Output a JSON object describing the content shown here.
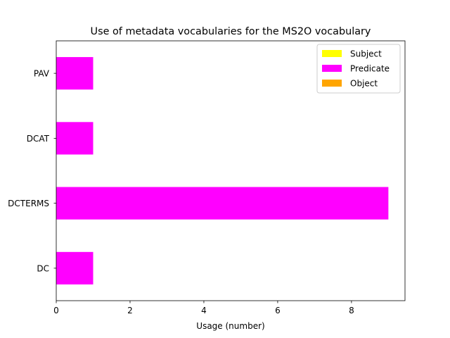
{
  "chart_data": {
    "type": "bar",
    "orientation": "horizontal",
    "stacked": true,
    "title": "Use of metadata vocabularies for the MS2O vocabulary",
    "xlabel": "Usage (number)",
    "ylabel": "",
    "categories": [
      "DC",
      "DCTERMS",
      "DCAT",
      "PAV"
    ],
    "series": [
      {
        "name": "Subject",
        "color": "#ffff00",
        "values": [
          0,
          0,
          0,
          0
        ]
      },
      {
        "name": "Predicate",
        "color": "#ff00ff",
        "values": [
          1,
          9,
          1,
          1
        ]
      },
      {
        "name": "Object",
        "color": "#ffa500",
        "values": [
          0,
          0,
          0,
          0
        ]
      }
    ],
    "xlim": [
      0,
      9.45
    ],
    "xticks": [
      0,
      2,
      4,
      6,
      8
    ],
    "grid": false,
    "legend_position": "top-right"
  }
}
